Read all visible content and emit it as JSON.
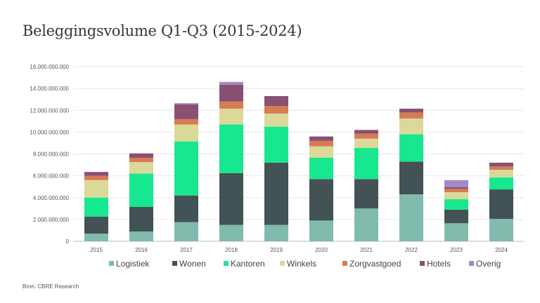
{
  "chart_data": {
    "type": "bar",
    "stacked": true,
    "title": "Beleggingsvolume Q1-Q3 (2015-2024)",
    "source": "Bron: CBRE Research",
    "xlabel": "",
    "ylabel": "",
    "ylim": [
      0,
      16000000000
    ],
    "yticks": [
      "0",
      "2.000.000.000",
      "4.000.000.000",
      "6.000.000.000",
      "8.000.000.000",
      "10.000.000.000",
      "12.000.000.000",
      "14.000.000.000",
      "16.000.000.000"
    ],
    "grid": true,
    "legend": "bottom",
    "categories": [
      "2015",
      "2016",
      "2017",
      "2018",
      "2019",
      "2020",
      "2021",
      "2022",
      "2023",
      "2024"
    ],
    "series": [
      {
        "name": "Logistiek",
        "color": "#80bbad",
        "values": [
          700000000,
          900000000,
          1750000000,
          1500000000,
          1500000000,
          1900000000,
          3000000000,
          4300000000,
          1650000000,
          2050000000
        ]
      },
      {
        "name": "Wonen",
        "color": "#435254",
        "values": [
          1550000000,
          2250000000,
          2450000000,
          4750000000,
          5700000000,
          3800000000,
          2700000000,
          3000000000,
          1250000000,
          2700000000
        ]
      },
      {
        "name": "Kantoren",
        "color": "#17e88f",
        "values": [
          1750000000,
          3050000000,
          4950000000,
          4450000000,
          3300000000,
          1950000000,
          2850000000,
          2500000000,
          950000000,
          1100000000
        ]
      },
      {
        "name": "Winkels",
        "color": "#dbd99a",
        "values": [
          1600000000,
          1050000000,
          1550000000,
          1450000000,
          1200000000,
          1050000000,
          850000000,
          1450000000,
          650000000,
          700000000
        ]
      },
      {
        "name": "Zorgvastgoed",
        "color": "#d87a54",
        "values": [
          400000000,
          400000000,
          500000000,
          650000000,
          700000000,
          500000000,
          450000000,
          550000000,
          300000000,
          300000000
        ]
      },
      {
        "name": "Hotels",
        "color": "#885073",
        "values": [
          350000000,
          400000000,
          1350000000,
          1550000000,
          900000000,
          400000000,
          350000000,
          350000000,
          150000000,
          350000000
        ]
      },
      {
        "name": "Overig",
        "color": "#a388c4",
        "values": [
          0,
          0,
          100000000,
          250000000,
          0,
          0,
          0,
          0,
          650000000,
          0
        ]
      }
    ]
  }
}
